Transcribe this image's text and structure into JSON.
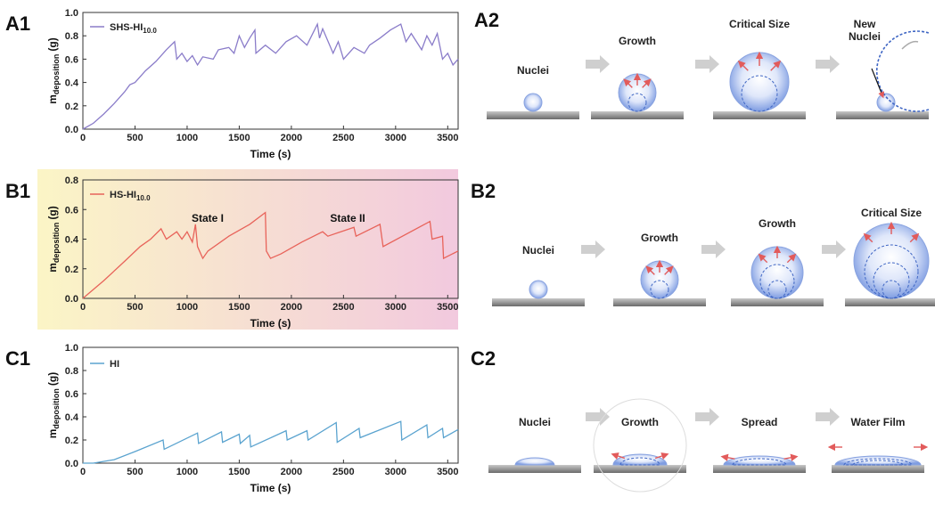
{
  "chart_data": [
    {
      "type": "line",
      "panel_label": "A1",
      "ylabel": "m",
      "ylabel_sub": "deposition",
      "ylabel_unit": "(g)",
      "xlabel": "Time (s)",
      "xlim": [
        0,
        3600
      ],
      "ylim": [
        0,
        1.0
      ],
      "xticks": [
        0,
        500,
        1000,
        1500,
        2000,
        2500,
        3000,
        3500
      ],
      "yticks": [
        {
          "value": 0,
          "label": "0.0"
        },
        {
          "value": 0.2,
          "label": "0.2"
        },
        {
          "value": 0.4,
          "label": "0.4"
        },
        {
          "value": 0.6,
          "label": "0.6"
        },
        {
          "value": 0.8,
          "label": "0.8"
        },
        {
          "value": 1.0,
          "label": "1.0"
        }
      ],
      "x": [
        0,
        100,
        200,
        300,
        400,
        450,
        500,
        600,
        700,
        800,
        880,
        900,
        950,
        1000,
        1050,
        1100,
        1150,
        1250,
        1300,
        1400,
        1450,
        1500,
        1550,
        1600,
        1650,
        1660,
        1750,
        1850,
        1950,
        2050,
        2150,
        2250,
        2270,
        2300,
        2400,
        2450,
        2500,
        2600,
        2700,
        2750,
        2850,
        2950,
        3050,
        3100,
        3150,
        3250,
        3300,
        3350,
        3400,
        3450,
        3500,
        3550,
        3600
      ],
      "series": [
        {
          "name": "SHS-HI",
          "name_sub": "10.0",
          "color": "#8a7cc9",
          "values": [
            0,
            0.05,
            0.13,
            0.22,
            0.32,
            0.38,
            0.4,
            0.5,
            0.58,
            0.68,
            0.75,
            0.6,
            0.65,
            0.58,
            0.63,
            0.55,
            0.62,
            0.6,
            0.68,
            0.7,
            0.65,
            0.8,
            0.7,
            0.78,
            0.85,
            0.65,
            0.72,
            0.65,
            0.75,
            0.8,
            0.72,
            0.9,
            0.78,
            0.86,
            0.65,
            0.75,
            0.6,
            0.7,
            0.65,
            0.72,
            0.78,
            0.85,
            0.9,
            0.75,
            0.82,
            0.68,
            0.8,
            0.72,
            0.82,
            0.6,
            0.65,
            0.55,
            0.6
          ]
        }
      ]
    },
    {
      "type": "line",
      "panel_label": "B1",
      "ylabel": "m",
      "ylabel_sub": "deposition",
      "ylabel_unit": "(g)",
      "xlabel": "Time (s)",
      "background_colors": [
        "#fbf5c6",
        "#f2c9de"
      ],
      "annotations": [
        "State I",
        "State II"
      ],
      "xlim": [
        0,
        3600
      ],
      "ylim": [
        0,
        0.8
      ],
      "xticks": [
        0,
        500,
        1000,
        1500,
        2000,
        2500,
        3000,
        3500
      ],
      "yticks": [
        {
          "value": 0,
          "label": "0.0"
        },
        {
          "value": 0.2,
          "label": "0.2"
        },
        {
          "value": 0.4,
          "label": "0.4"
        },
        {
          "value": 0.6,
          "label": "0.6"
        },
        {
          "value": 0.8,
          "label": "0.8"
        }
      ],
      "x": [
        0,
        200,
        400,
        550,
        650,
        750,
        800,
        900,
        950,
        1000,
        1050,
        1080,
        1100,
        1150,
        1200,
        1400,
        1600,
        1750,
        1760,
        1800,
        1900,
        2100,
        2300,
        2350,
        2600,
        2620,
        2850,
        2880,
        3330,
        3350,
        3450,
        3460,
        3600
      ],
      "series": [
        {
          "name": "HS-HI",
          "name_sub": "10.0",
          "color": "#e8635a",
          "values": [
            0,
            0.12,
            0.25,
            0.35,
            0.4,
            0.47,
            0.4,
            0.45,
            0.4,
            0.45,
            0.38,
            0.5,
            0.35,
            0.27,
            0.32,
            0.42,
            0.5,
            0.58,
            0.32,
            0.27,
            0.3,
            0.38,
            0.45,
            0.42,
            0.48,
            0.42,
            0.5,
            0.35,
            0.52,
            0.4,
            0.42,
            0.27,
            0.32
          ]
        }
      ]
    },
    {
      "type": "line",
      "panel_label": "C1",
      "ylabel": "m",
      "ylabel_sub": "deposition",
      "ylabel_unit": "(g)",
      "xlabel": "Time (s)",
      "xlim": [
        0,
        3600
      ],
      "ylim": [
        0,
        1.0
      ],
      "xticks": [
        0,
        500,
        1000,
        1500,
        2000,
        2500,
        3000,
        3500
      ],
      "yticks": [
        {
          "value": 0,
          "label": "0.0"
        },
        {
          "value": 0.2,
          "label": "0.2"
        },
        {
          "value": 0.4,
          "label": "0.4"
        },
        {
          "value": 0.6,
          "label": "0.6"
        },
        {
          "value": 0.8,
          "label": "0.8"
        },
        {
          "value": 1.0,
          "label": "1.0"
        }
      ],
      "x": [
        0,
        100,
        300,
        500,
        770,
        780,
        1100,
        1110,
        1330,
        1340,
        1500,
        1510,
        1600,
        1610,
        1950,
        1960,
        2150,
        2160,
        2430,
        2440,
        2650,
        2660,
        3050,
        3060,
        3300,
        3310,
        3450,
        3460,
        3600
      ],
      "series": [
        {
          "name": "HI",
          "color": "#5aa3cf",
          "values": [
            0,
            0,
            0.03,
            0.1,
            0.2,
            0.12,
            0.26,
            0.17,
            0.27,
            0.18,
            0.25,
            0.17,
            0.24,
            0.14,
            0.28,
            0.2,
            0.28,
            0.2,
            0.35,
            0.18,
            0.3,
            0.22,
            0.36,
            0.2,
            0.33,
            0.22,
            0.3,
            0.22,
            0.29
          ]
        }
      ]
    }
  ],
  "diagrams": [
    {
      "label": "A2",
      "steps": [
        "Nuclei",
        "Growth",
        "Critical Size",
        "New Nuclei"
      ]
    },
    {
      "label": "B2",
      "steps": [
        "Nuclei",
        "Growth",
        "Growth",
        "Critical Size"
      ]
    },
    {
      "label": "C2",
      "steps": [
        "Nuclei",
        "Growth",
        "Spread",
        "Water Film"
      ]
    }
  ]
}
